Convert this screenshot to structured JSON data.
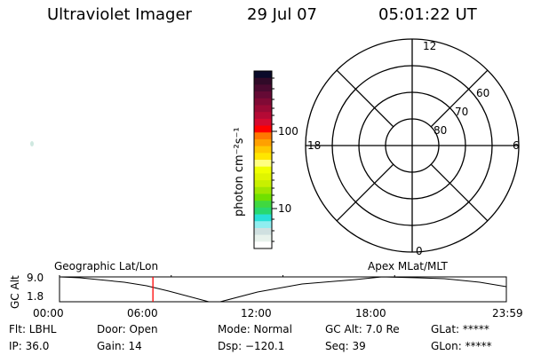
{
  "header": {
    "instrument": "Ultraviolet Imager",
    "date": "29 Jul 07",
    "time": "05:01:22 UT"
  },
  "colorbar": {
    "label": "photon cm⁻²s⁻¹",
    "tick_labels": [
      "100",
      "10"
    ],
    "colors": [
      "#0a0a2a",
      "#300a28",
      "#4a0a30",
      "#650a35",
      "#800a35",
      "#9a0a35",
      "#b50a35",
      "#d50a30",
      "#ff0000",
      "#ff7800",
      "#ffa000",
      "#ffc800",
      "#ffe600",
      "#ffff80",
      "#f0ff00",
      "#e0f500",
      "#c8f000",
      "#a0e600",
      "#70e000",
      "#40d840",
      "#28d870",
      "#28e0d8",
      "#90eef0",
      "#d0e0e0",
      "#e8f2ec",
      "#ffffff"
    ]
  },
  "polar": {
    "mlt_labels": [
      "12",
      "6",
      "0",
      "18"
    ],
    "lat_labels": [
      "60",
      "70",
      "80"
    ]
  },
  "altitude_plot": {
    "ylabel": "GC Alt",
    "y_ticks": [
      "9.0",
      "1.8"
    ],
    "x_ticks": [
      "00:00",
      "06:00",
      "12:00",
      "18:00",
      "23:59"
    ],
    "left_label": "Geographic Lat/Lon",
    "right_label": "Apex MLat/MLT",
    "current_time": "05:01",
    "marker_color": "#ff0000"
  },
  "status": {
    "filter": "Flt: LBHL",
    "ip": "IP: 36.0",
    "door": "Door: Open",
    "gain": "Gain: 14",
    "mode": "Mode: Normal",
    "dsp": "Dsp: −120.1",
    "gc_alt": "GC Alt: 7.0 Re",
    "seq": "Seq: 39",
    "glat": "GLat: *****",
    "glon": "GLon: *****"
  }
}
